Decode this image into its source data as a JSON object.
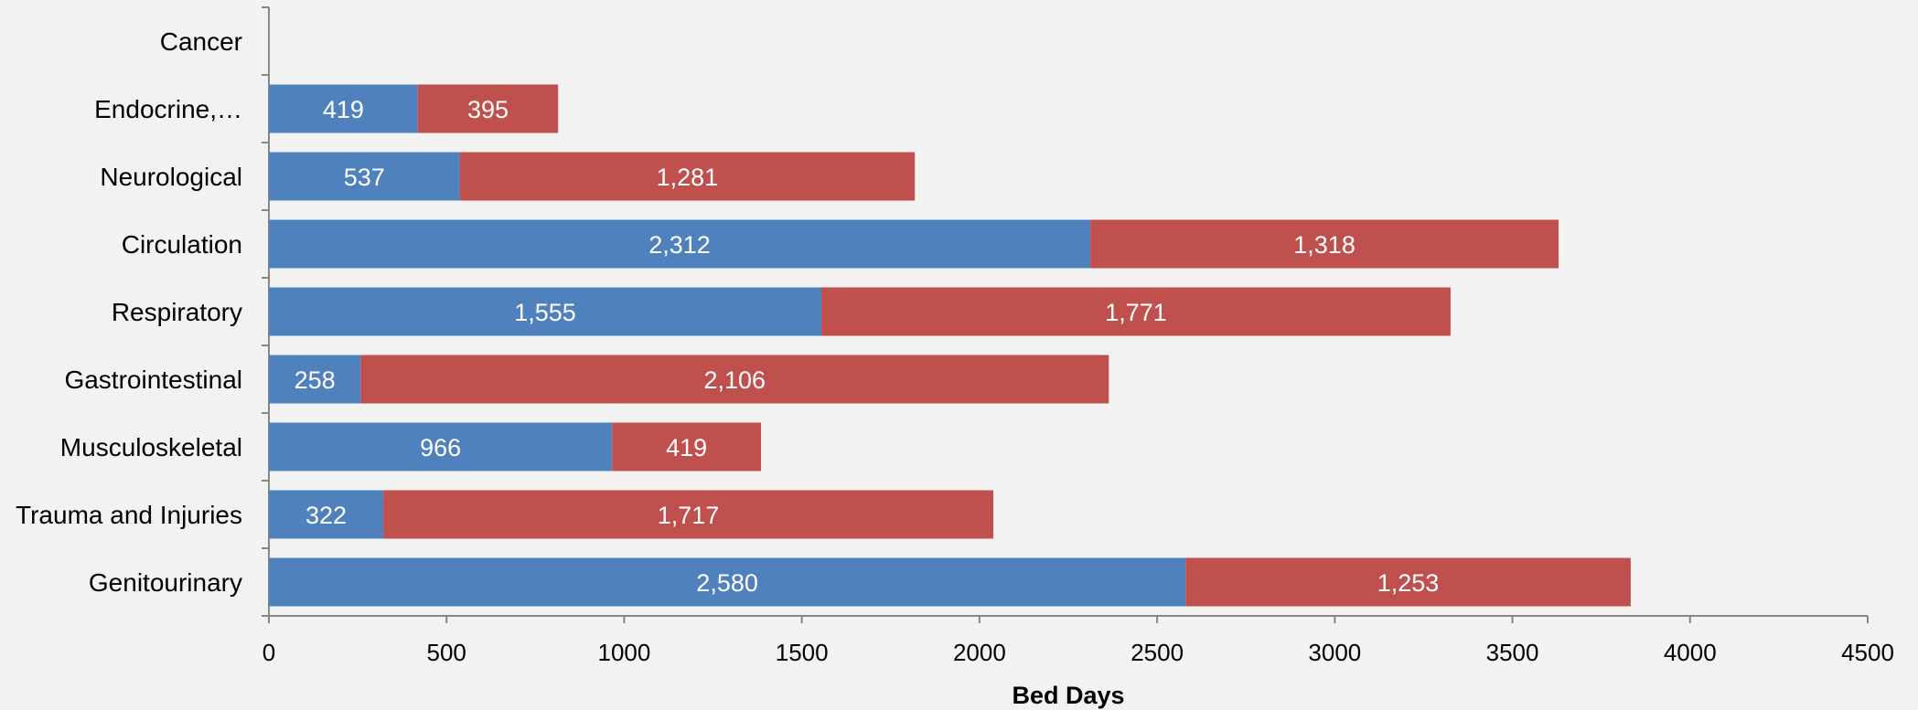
{
  "chart_data": {
    "type": "bar",
    "orientation": "horizontal",
    "stacked": true,
    "title": "",
    "xlabel": "Bed Days",
    "ylabel": "",
    "xlim": [
      0,
      4500
    ],
    "x_ticks": [
      0,
      500,
      1000,
      1500,
      2000,
      2500,
      3000,
      3500,
      4000,
      4500
    ],
    "grid": false,
    "legend": "none",
    "categories": [
      "Cancer",
      "Endocrine,…",
      "Neurological",
      "Circulation",
      "Respiratory",
      "Gastrointestinal",
      "Musculoskeletal",
      "Trauma and Injuries",
      "Genitourinary"
    ],
    "series": [
      {
        "color": "#4f81bd",
        "values": [
          0,
          419,
          537,
          2312,
          1555,
          258,
          966,
          322,
          2580
        ],
        "labels": [
          "",
          "419",
          "537",
          "2,312",
          "1,555",
          "258",
          "966",
          "322",
          "2,580"
        ]
      },
      {
        "color": "#c0504d",
        "values": [
          0,
          395,
          1281,
          1318,
          1771,
          2106,
          419,
          1717,
          1253
        ],
        "labels": [
          "",
          "395",
          "1,281",
          "1,318",
          "1,771",
          "2,106",
          "419",
          "1,717",
          "1,253"
        ]
      }
    ]
  }
}
